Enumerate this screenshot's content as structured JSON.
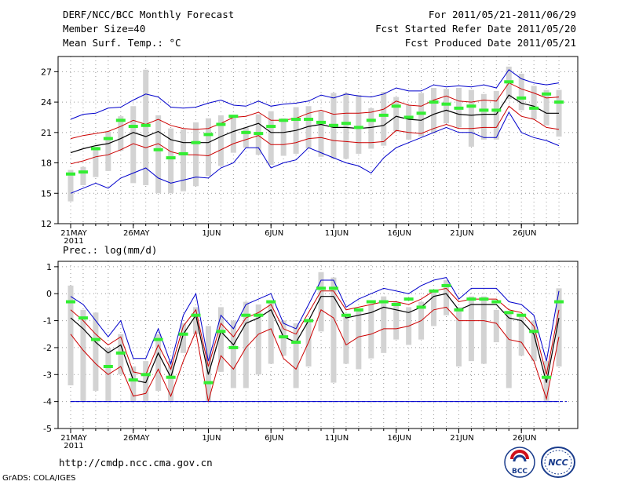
{
  "header": {
    "title": "DERF/NCC/BCC Monthly Forecast",
    "member": "Member Size=40",
    "variable": "Mean Surf. Temp.: °C",
    "period": "For 2011/05/21-2011/06/29",
    "start": "Fcst Started Refer Date 2011/05/20",
    "produced": "Fcst Produced Date 2011/05/21"
  },
  "footer": {
    "url": "http://cmdp.ncc.cma.gov.cn",
    "grads": "GrADS: COLA/IGES",
    "logo1_text": "BCC",
    "logo2_text": "NCC"
  },
  "colors": {
    "ensemble_mean": "#000000",
    "spread_inner": "#cc0000",
    "spread_outer": "#0000cc",
    "member_range": "#d3d3d3",
    "median_tick": "#33ee33",
    "grid": "#999999"
  },
  "chart_data": [
    {
      "type": "line",
      "title": "Mean Surf. Temp.: °C",
      "x_labels": [
        "21MAY",
        "26MAY",
        "1JUN",
        "6JUN",
        "11JUN",
        "16JUN",
        "21JUN",
        "26JUN"
      ],
      "x_label_year": "2011",
      "x_label_days": [
        0,
        5,
        11,
        16,
        21,
        26,
        31,
        36
      ],
      "days": 40,
      "ylim": [
        12,
        28.5
      ],
      "yticks": [
        12,
        15,
        18,
        21,
        24,
        27
      ],
      "mean": [
        19.0,
        19.4,
        19.7,
        19.9,
        20.4,
        21.0,
        20.6,
        21.1,
        20.3,
        20.0,
        20.0,
        20.0,
        20.6,
        21.1,
        21.5,
        21.9,
        21.0,
        21.0,
        21.2,
        21.6,
        21.8,
        21.5,
        21.5,
        21.4,
        21.5,
        21.7,
        22.6,
        22.3,
        22.2,
        22.8,
        23.2,
        22.8,
        22.7,
        22.8,
        22.8,
        24.7,
        23.9,
        23.6,
        22.9,
        22.9
      ],
      "inner_upper": [
        20.4,
        20.7,
        20.9,
        21.1,
        21.6,
        22.2,
        21.8,
        22.3,
        21.7,
        21.4,
        21.3,
        21.4,
        21.9,
        22.5,
        22.6,
        23.0,
        22.2,
        22.2,
        22.4,
        22.9,
        23.2,
        22.8,
        22.9,
        22.9,
        23.0,
        23.3,
        24.1,
        23.7,
        23.6,
        24.2,
        24.6,
        24.1,
        24.0,
        24.2,
        24.1,
        25.9,
        25.3,
        24.9,
        24.4,
        24.5
      ],
      "inner_lower": [
        17.9,
        18.2,
        18.6,
        18.8,
        19.3,
        19.9,
        19.5,
        19.9,
        19.1,
        18.8,
        18.8,
        18.7,
        19.3,
        19.9,
        20.3,
        20.7,
        19.8,
        19.8,
        20.0,
        20.4,
        20.5,
        20.2,
        20.1,
        20.0,
        20.0,
        20.1,
        21.2,
        21.0,
        20.9,
        21.4,
        21.8,
        21.4,
        21.4,
        21.5,
        21.5,
        23.6,
        22.6,
        22.3,
        21.5,
        21.3
      ],
      "outer_upper": [
        22.3,
        22.8,
        22.9,
        23.4,
        23.5,
        24.2,
        24.8,
        24.5,
        23.5,
        23.4,
        23.5,
        23.9,
        24.2,
        23.7,
        23.6,
        24.1,
        23.6,
        23.8,
        23.9,
        24.1,
        24.7,
        24.4,
        24.8,
        24.6,
        24.5,
        24.8,
        25.4,
        25.1,
        25.1,
        25.7,
        25.5,
        25.6,
        25.5,
        25.7,
        25.4,
        27.2,
        26.3,
        25.9,
        25.7,
        25.9
      ],
      "outer_lower": [
        15.0,
        15.5,
        16.0,
        15.5,
        16.5,
        17.0,
        17.5,
        16.5,
        16.0,
        16.3,
        16.6,
        16.5,
        17.5,
        18.0,
        19.5,
        19.5,
        17.5,
        18.0,
        18.3,
        19.5,
        19.0,
        18.5,
        18.0,
        17.7,
        17.0,
        18.5,
        19.5,
        20.0,
        20.5,
        21.0,
        21.5,
        21.0,
        21.0,
        20.5,
        20.5,
        23.0,
        21.0,
        20.5,
        20.2,
        19.7
      ],
      "box_min": [
        14.2,
        15.8,
        16.6,
        17.2,
        19.2,
        16.0,
        15.8,
        15.0,
        15.0,
        15.2,
        15.7,
        16.7,
        17.7,
        19.0,
        19.5,
        18.8,
        17.8,
        18.7,
        18.9,
        19.4,
        18.6,
        18.4,
        18.4,
        18.9,
        19.4,
        19.7,
        21.1,
        20.3,
        20.6,
        20.9,
        21.9,
        21.5,
        19.6,
        20.3,
        20.3,
        24.3,
        23.2,
        22.3,
        21.7,
        20.6
      ],
      "box_max": [
        17.3,
        17.6,
        19.6,
        21.1,
        22.6,
        23.6,
        27.2,
        22.7,
        21.4,
        21.3,
        22.0,
        22.4,
        22.7,
        22.6,
        21.5,
        22.8,
        23.1,
        22.4,
        23.5,
        23.6,
        23.1,
        24.9,
        24.9,
        24.7,
        23.4,
        25.0,
        24.5,
        23.7,
        24.9,
        25.4,
        25.3,
        25.4,
        25.2,
        24.8,
        25.1,
        27.5,
        26.8,
        25.6,
        25.2,
        25.2
      ],
      "median": [
        16.9,
        17.1,
        19.4,
        20.4,
        22.2,
        21.6,
        21.7,
        19.3,
        18.5,
        18.9,
        20.0,
        20.8,
        21.8,
        22.6,
        21.0,
        20.9,
        21.6,
        22.2,
        22.3,
        22.3,
        22.0,
        21.7,
        21.9,
        21.5,
        22.2,
        22.7,
        23.6,
        22.5,
        22.9,
        24.0,
        23.8,
        23.4,
        23.6,
        23.2,
        23.2,
        26.0,
        24.4,
        23.4,
        24.8,
        24.0
      ]
    },
    {
      "type": "line",
      "title": "Prec.: log(mm/d)",
      "x_labels": [
        "21MAY",
        "26MAY",
        "1JUN",
        "6JUN",
        "11JUN",
        "16JUN",
        "21JUN",
        "26JUN"
      ],
      "x_label_year": "2011",
      "x_label_days": [
        0,
        5,
        11,
        16,
        21,
        26,
        31,
        36
      ],
      "days": 40,
      "ylim": [
        -5,
        1.2
      ],
      "yticks": [
        -5,
        -4,
        -3,
        -2,
        -1,
        0,
        1
      ],
      "baseline": -4,
      "mean": [
        -0.9,
        -1.3,
        -1.8,
        -2.2,
        -1.9,
        -3.2,
        -3.3,
        -2.2,
        -3.1,
        -1.5,
        -0.8,
        -3.0,
        -1.4,
        -1.9,
        -1.1,
        -0.9,
        -0.6,
        -1.6,
        -1.8,
        -1.0,
        -0.1,
        -0.1,
        -0.9,
        -0.8,
        -0.7,
        -0.5,
        -0.6,
        -0.7,
        -0.5,
        -0.1,
        0.0,
        -0.6,
        -0.4,
        -0.4,
        -0.4,
        -0.9,
        -1.0,
        -1.5,
        -3.3,
        -0.9
      ],
      "inner_upper": [
        -0.6,
        -1.0,
        -1.5,
        -1.9,
        -1.6,
        -2.9,
        -3.0,
        -1.9,
        -2.8,
        -1.2,
        -0.6,
        -2.7,
        -1.1,
        -1.6,
        -0.9,
        -0.7,
        -0.4,
        -1.3,
        -1.5,
        -0.7,
        0.1,
        0.1,
        -0.6,
        -0.5,
        -0.4,
        -0.3,
        -0.3,
        -0.4,
        -0.2,
        0.1,
        0.2,
        -0.3,
        -0.2,
        -0.2,
        -0.2,
        -0.6,
        -0.7,
        -1.2,
        -3.0,
        -0.6
      ],
      "inner_lower": [
        -1.5,
        -2.1,
        -2.6,
        -3.0,
        -2.7,
        -3.8,
        -3.7,
        -2.8,
        -3.8,
        -2.5,
        -1.4,
        -4.0,
        -2.3,
        -2.8,
        -2.0,
        -1.5,
        -1.3,
        -2.4,
        -2.8,
        -1.8,
        -0.6,
        -0.9,
        -1.9,
        -1.6,
        -1.5,
        -1.3,
        -1.3,
        -1.2,
        -1.0,
        -0.6,
        -0.5,
        -1.0,
        -1.0,
        -1.0,
        -1.1,
        -1.7,
        -1.8,
        -2.5,
        -3.9,
        -1.6
      ],
      "outer_upper": [
        -0.1,
        -0.4,
        -1.0,
        -1.6,
        -1.0,
        -2.4,
        -2.4,
        -1.3,
        -2.6,
        -0.8,
        0.0,
        -2.5,
        -0.8,
        -1.3,
        -0.4,
        -0.2,
        0.0,
        -1.1,
        -1.3,
        -0.4,
        0.5,
        0.5,
        -0.5,
        -0.2,
        0.0,
        0.2,
        0.1,
        0.0,
        0.3,
        0.5,
        0.6,
        -0.2,
        0.2,
        0.2,
        0.2,
        -0.3,
        -0.4,
        -0.8,
        -2.5,
        0.1
      ],
      "outer_lower": [
        -4.0,
        -4.0,
        -4.0,
        -4.0,
        -4.0,
        -4.0,
        -4.0,
        -4.0,
        -4.0,
        -4.0,
        -4.0,
        -4.0,
        -4.0,
        -4.0,
        -4.0,
        -4.0,
        -4.0,
        -4.0,
        -4.0,
        -4.0,
        -4.0,
        -4.0,
        -4.0,
        -4.0,
        -4.0,
        -4.0,
        -4.0,
        -4.0,
        -4.0,
        -4.0,
        -4.0,
        -4.0,
        -4.0,
        -4.0,
        -4.0,
        -4.0,
        -4.0,
        -4.0,
        -4.0,
        -4.0
      ],
      "box_min": [
        -3.4,
        -4.0,
        -3.6,
        -4.0,
        -3.0,
        -4.0,
        -4.0,
        -3.6,
        -4.0,
        -2.2,
        -1.5,
        -4.0,
        -2.9,
        -3.5,
        -3.5,
        -3.0,
        -2.6,
        -2.3,
        -3.5,
        -2.7,
        -1.4,
        -3.3,
        -2.6,
        -2.8,
        -2.4,
        -2.2,
        -1.7,
        -1.9,
        -1.7,
        -1.2,
        -0.8,
        -2.7,
        -2.5,
        -2.6,
        -1.8,
        -3.5,
        -2.3,
        -2.5,
        -4.0,
        -2.7
      ],
      "box_max": [
        0.3,
        -0.6,
        -0.7,
        -2.0,
        -1.5,
        -2.7,
        -2.5,
        -1.5,
        -2.5,
        -1.1,
        -0.5,
        -1.2,
        -0.5,
        -1.0,
        -0.3,
        -0.4,
        -0.3,
        -1.0,
        -1.1,
        -1.0,
        0.8,
        0.6,
        -0.8,
        -0.6,
        -0.4,
        -0.1,
        -0.3,
        -0.5,
        -0.3,
        0.1,
        0.5,
        -0.5,
        -0.1,
        -0.1,
        -0.6,
        -0.7,
        -0.8,
        -1.0,
        -2.5,
        0.2
      ],
      "median": [
        -0.3,
        -0.9,
        -1.7,
        -2.7,
        -2.2,
        -3.2,
        -3.0,
        -1.7,
        -3.1,
        -1.5,
        -0.8,
        -3.3,
        -1.4,
        -2.0,
        -0.8,
        -0.8,
        -0.3,
        -1.6,
        -1.8,
        -1.0,
        0.2,
        0.2,
        -0.8,
        -0.6,
        -0.3,
        -0.3,
        -0.4,
        -0.2,
        -0.5,
        0.1,
        0.3,
        -0.6,
        -0.2,
        -0.2,
        -0.3,
        -0.7,
        -0.8,
        -1.4,
        -3.1,
        -0.3
      ]
    }
  ]
}
